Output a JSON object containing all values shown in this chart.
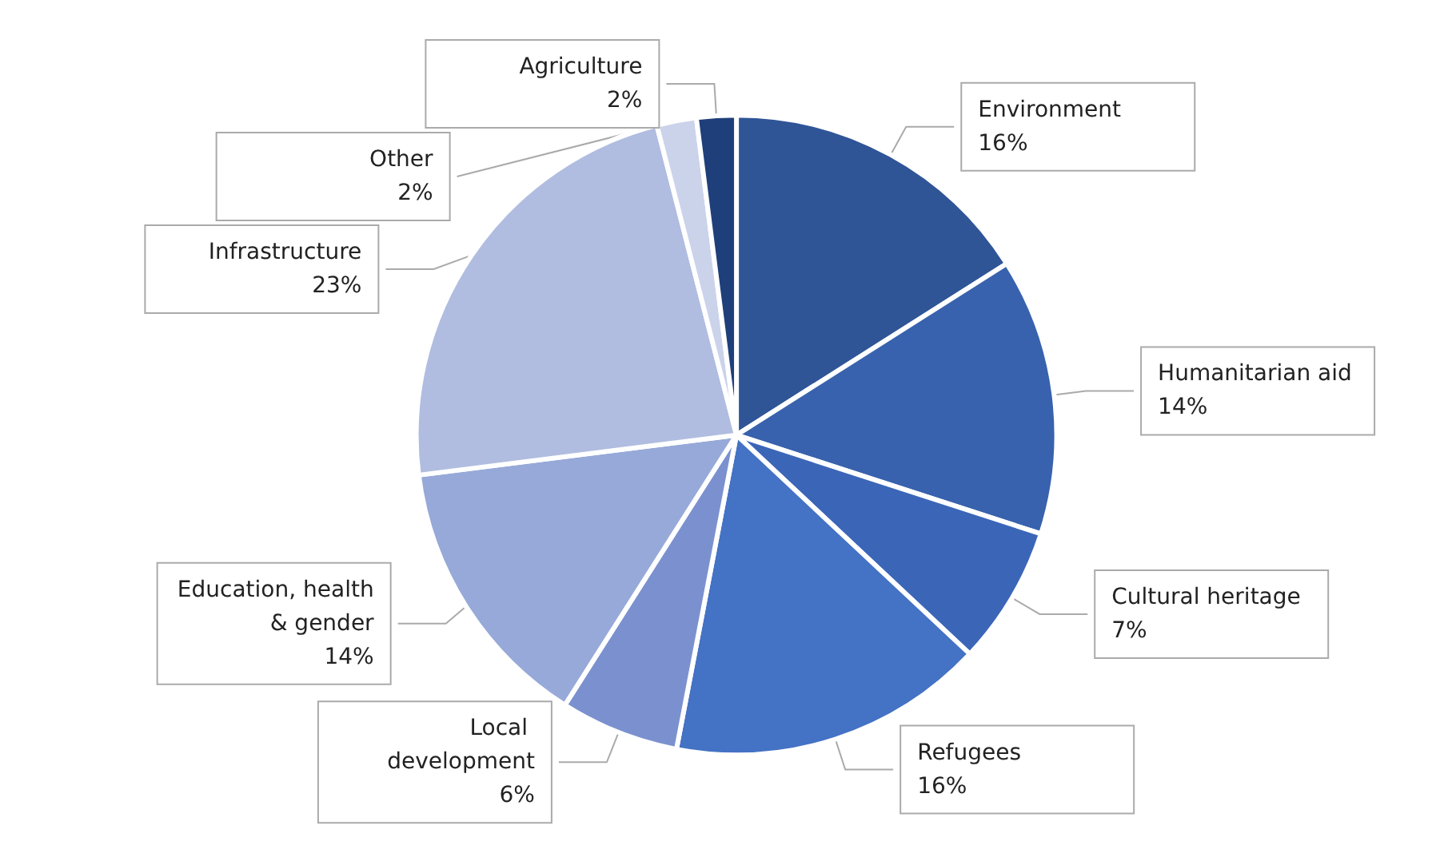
{
  "chart_data": {
    "type": "pie",
    "categories": [
      "Environment",
      "Humanitarian aid",
      "Cultural heritage",
      "Refugees",
      "Local development",
      "Education, health & gender",
      "Infrastructure",
      "Other",
      "Agriculture"
    ],
    "values": [
      16,
      14,
      7,
      16,
      6,
      14,
      23,
      2,
      2
    ],
    "value_labels": [
      "16%",
      "14%",
      "7%",
      "16%",
      "6%",
      "14%",
      "23%",
      "2%",
      "2%"
    ],
    "colors": [
      "#2f5597",
      "#3862ad",
      "#3b66b8",
      "#4472c4",
      "#7b91cf",
      "#97a9d8",
      "#b0bde0",
      "#cbd3eb",
      "#1f3f7a"
    ],
    "legend": false
  }
}
